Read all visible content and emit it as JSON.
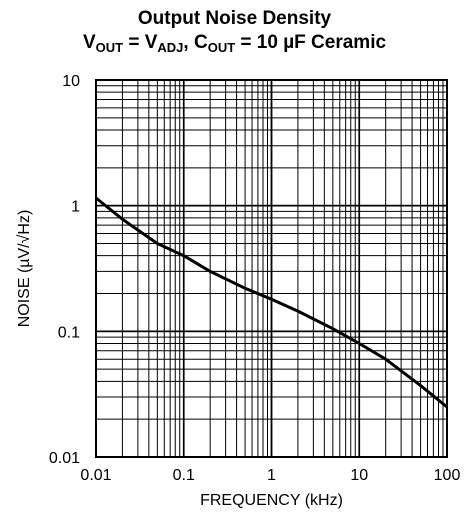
{
  "title_parts": {
    "line1": "Output Noise Density",
    "v": "V",
    "out_sub": "OUT",
    "eq1": " = V",
    "adj_sub": "ADJ",
    "c_sep": ", C",
    "cout_sub": "OUT",
    "rest": " = 10 µF Ceramic"
  },
  "chart_data": {
    "type": "line",
    "title": "Output Noise Density",
    "subtitle": "VOUT = VADJ, COUT = 10 µF Ceramic",
    "xlabel": "FREQUENCY (kHz)",
    "ylabel": "NOISE (µV/√Hz)",
    "x_scale": "log",
    "y_scale": "log",
    "xlim": [
      0.01,
      100
    ],
    "ylim": [
      0.01,
      10
    ],
    "x_ticks": [
      "0.01",
      "0.1",
      "1",
      "10",
      "100"
    ],
    "y_ticks": [
      "0.01",
      "0.1",
      "1",
      "10"
    ],
    "grid": true,
    "line_color": "#000000",
    "series": [
      {
        "x": [
          0.01,
          0.02,
          0.05,
          0.1,
          0.2,
          0.5,
          1,
          2,
          5,
          10,
          20,
          50,
          100
        ],
        "values": [
          1.15,
          0.78,
          0.5,
          0.4,
          0.3,
          0.22,
          0.18,
          0.145,
          0.105,
          0.08,
          0.06,
          0.037,
          0.025
        ]
      }
    ]
  }
}
